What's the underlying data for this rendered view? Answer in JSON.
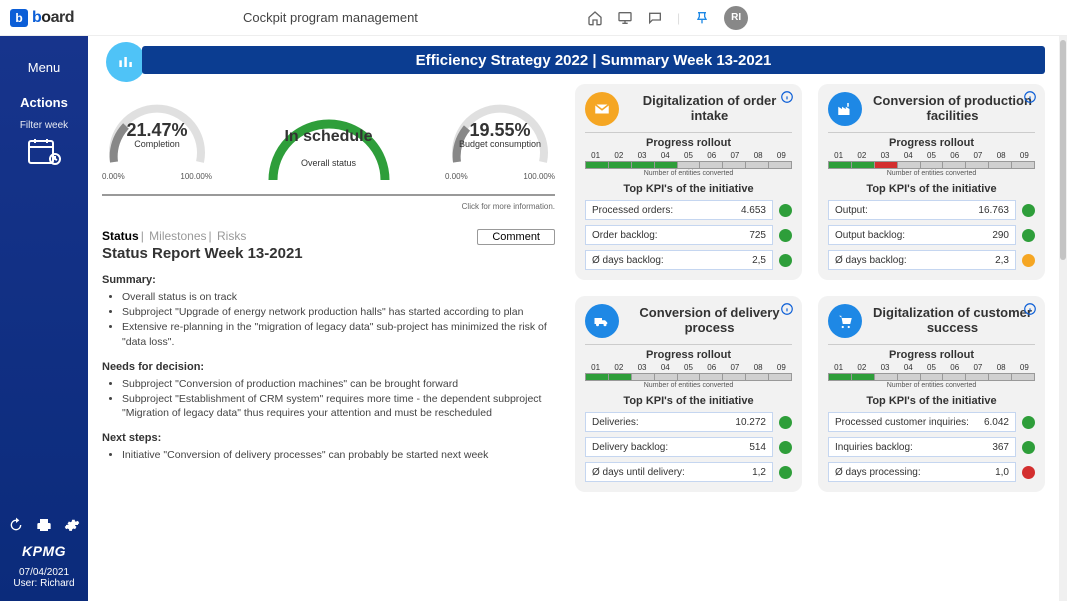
{
  "topbar": {
    "brand_prefix": "b",
    "brand_rest": "ard",
    "brand_char": "b",
    "page_title": "Cockpit program management",
    "avatar_initials": "RI"
  },
  "leftnav": {
    "menu": "Menu",
    "actions": "Actions",
    "filter": "Filter week",
    "partner": "KPMG",
    "date": "07/04/2021",
    "user": "User: Richard"
  },
  "banner": "Efficiency Strategy 2022 | Summary Week 13-2021",
  "gauges": {
    "completion": {
      "value": "21.47%",
      "label": "Completion",
      "min": "0.00%",
      "max": "100.00%",
      "pct": 0.2147,
      "color": "#888888"
    },
    "overall": {
      "value": "In schedule",
      "label": "Overall status",
      "color": "#2e9e3a"
    },
    "budget": {
      "value": "19.55%",
      "label": "Budget consumption",
      "min": "0.00%",
      "max": "100.00%",
      "pct": 0.1955,
      "color": "#888888"
    },
    "note": "Click for more information."
  },
  "tabs": {
    "a": "Status",
    "b": "Milestones",
    "c": "Risks",
    "comment": "Comment"
  },
  "report": {
    "title": "Status Report Week 13-2021",
    "summary_h": "Summary:",
    "summary": [
      "Overall status is on track",
      "Subproject \"Upgrade of energy network production halls\" has started according to plan",
      "Extensive re-planning in the \"migration of legacy data\" sub-project has minimized the risk of \"data loss\"."
    ],
    "needs_h": "Needs for decision:",
    "needs": [
      "Subproject \"Conversion of production machines\" can be brought forward",
      "Subproject \"Establishment of CRM system\" requires more time - the dependent subproject \"Migration of legacy data\" thus requires your attention and must be rescheduled"
    ],
    "next_h": "Next steps:",
    "next": [
      "Initiative \"Conversion of delivery processes\" can probably be started next week"
    ]
  },
  "cards": [
    {
      "title": "Digitalization of order intake",
      "icon": "mail",
      "icon_bg": "#f5a623",
      "progress_h": "Progress rollout",
      "cols": [
        "01",
        "02",
        "03",
        "04",
        "05",
        "06",
        "07",
        "08",
        "09"
      ],
      "bar": [
        "g",
        "g",
        "g",
        "g",
        "n",
        "n",
        "n",
        "n",
        "n"
      ],
      "tiny": "Number of entities converted",
      "kpi_h": "Top KPI's of the initiative",
      "kpis": [
        {
          "label": "Processed orders:",
          "value": "4.653",
          "dot": "g"
        },
        {
          "label": "Order backlog:",
          "value": "725",
          "dot": "g"
        },
        {
          "label": "Ø days backlog:",
          "value": "2,5",
          "dot": "g"
        }
      ]
    },
    {
      "title": "Conversion of production facilities",
      "icon": "factory",
      "icon_bg": "#1e88e5",
      "progress_h": "Progress rollout",
      "cols": [
        "01",
        "02",
        "03",
        "04",
        "05",
        "06",
        "07",
        "08",
        "09"
      ],
      "bar": [
        "g",
        "g",
        "r",
        "n",
        "n",
        "n",
        "n",
        "n",
        "n"
      ],
      "tiny": "Number of entities converted",
      "kpi_h": "Top KPI's of the initiative",
      "kpis": [
        {
          "label": "Output:",
          "value": "16.763",
          "dot": "g"
        },
        {
          "label": "Output backlog:",
          "value": "290",
          "dot": "g"
        },
        {
          "label": "Ø days backlog:",
          "value": "2,3",
          "dot": "o"
        }
      ]
    },
    {
      "title": "Conversion of delivery process",
      "icon": "truck",
      "icon_bg": "#1e88e5",
      "progress_h": "Progress rollout",
      "cols": [
        "01",
        "02",
        "03",
        "04",
        "05",
        "06",
        "07",
        "08",
        "09"
      ],
      "bar": [
        "g",
        "g",
        "n",
        "n",
        "n",
        "n",
        "n",
        "n",
        "n"
      ],
      "tiny": "Number of entities converted",
      "kpi_h": "Top KPI's of the initiative",
      "kpis": [
        {
          "label": "Deliveries:",
          "value": "10.272",
          "dot": "g"
        },
        {
          "label": "Delivery backlog:",
          "value": "514",
          "dot": "g"
        },
        {
          "label": "Ø days until delivery:",
          "value": "1,2",
          "dot": "g"
        }
      ]
    },
    {
      "title": "Digitalization of customer success",
      "icon": "cart",
      "icon_bg": "#1e88e5",
      "progress_h": "Progress rollout",
      "cols": [
        "01",
        "02",
        "03",
        "04",
        "05",
        "06",
        "07",
        "08",
        "09"
      ],
      "bar": [
        "g",
        "g",
        "n",
        "n",
        "n",
        "n",
        "n",
        "n",
        "n"
      ],
      "tiny": "Number of entities converted",
      "kpi_h": "Top KPI's of the initiative",
      "kpis": [
        {
          "label": "Processed customer inquiries:",
          "value": "6.042",
          "dot": "g"
        },
        {
          "label": "Inquiries backlog:",
          "value": "367",
          "dot": "g"
        },
        {
          "label": "Ø days processing:",
          "value": "1,0",
          "dot": "r"
        }
      ]
    }
  ]
}
